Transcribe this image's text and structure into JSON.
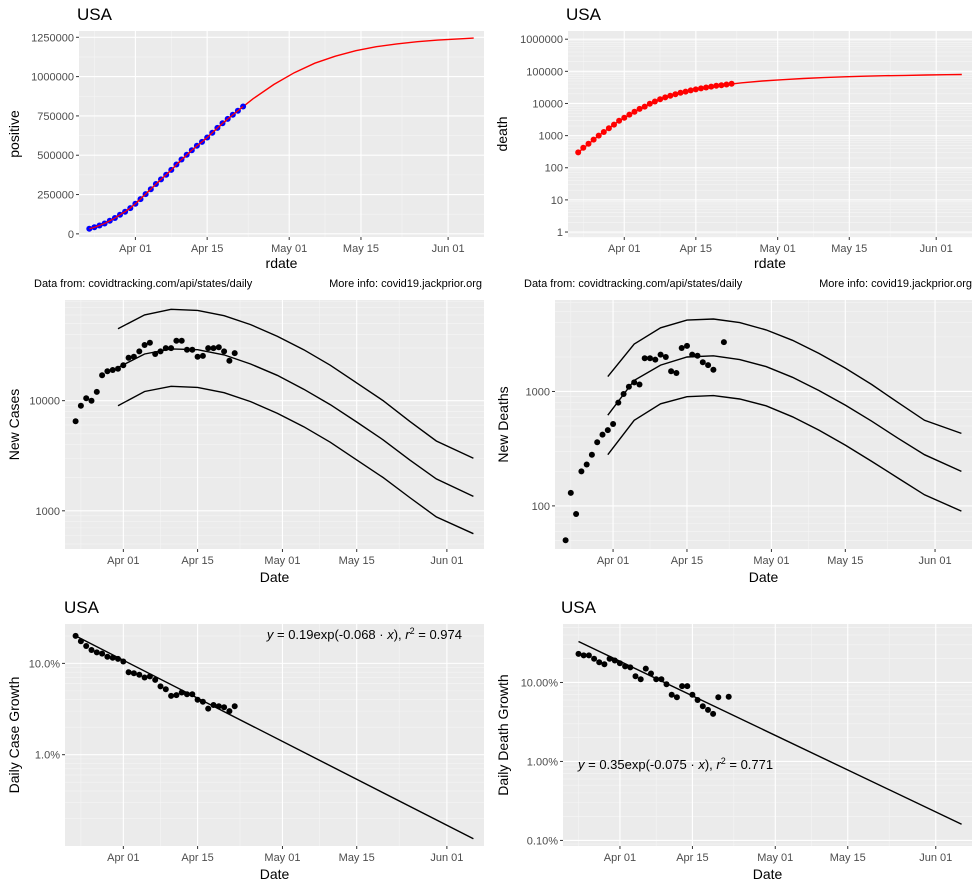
{
  "charts": [
    {
      "title": "USA",
      "xlabel": "rdate",
      "ylabel": "positive",
      "source_note": "",
      "info_note": "",
      "equation": null
    },
    {
      "title": "USA",
      "xlabel": "rdate",
      "ylabel": "death",
      "source_note": "",
      "info_note": "",
      "equation": null
    },
    {
      "title": "",
      "xlabel": "Date",
      "ylabel": "New Cases",
      "source_note": "Data from: covidtracking.com/api/states/daily",
      "info_note": "More info: covid19.jackprior.org",
      "equation": null
    },
    {
      "title": "",
      "xlabel": "Date",
      "ylabel": "New Deaths",
      "source_note": "Data from: covidtracking.com/api/states/daily",
      "info_note": "More info: covid19.jackprior.org",
      "equation": null
    },
    {
      "title": "USA",
      "xlabel": "Date",
      "ylabel": "Daily Case Growth",
      "source_note": "",
      "info_note": "",
      "equation": {
        "y": "y",
        "body": " = 0.19exp(-0.068 · ",
        "x": "x",
        "close": "),  ",
        "r": "r",
        "sup": "2",
        "val": " = 0.974"
      }
    },
    {
      "title": "USA",
      "xlabel": "Date",
      "ylabel": "Daily Death Growth",
      "source_note": "",
      "info_note": "",
      "equation": {
        "y": "y",
        "body": " = 0.35exp(-0.075 · ",
        "x": "x",
        "close": "),  ",
        "r": "r",
        "sup": "2",
        "val": " = 0.771"
      }
    }
  ],
  "chart_data": [
    {
      "type": "scatter",
      "x_ticks": [
        "2020-04-01",
        "2020-04-15",
        "2020-05-01",
        "2020-05-15",
        "2020-06-01"
      ],
      "x_tick_labels": [
        "Apr 01",
        "Apr 15",
        "May 01",
        "May 15",
        "Jun 01"
      ],
      "xlim": [
        "2020-03-21",
        "2020-06-08"
      ],
      "yscale": "linear",
      "ylim": [
        -20000,
        1290000
      ],
      "y_ticks": [
        0,
        250000,
        500000,
        750000,
        1000000,
        1250000
      ],
      "y_tick_labels": [
        "0",
        "250000",
        "500000",
        "750000",
        "1000000",
        "1250000"
      ],
      "grid": true,
      "point_color": "#0000ff",
      "fit_color": "#ff0000",
      "points": {
        "x": [
          "2020-03-23",
          "2020-03-24",
          "2020-03-25",
          "2020-03-26",
          "2020-03-27",
          "2020-03-28",
          "2020-03-29",
          "2020-03-30",
          "2020-03-31",
          "2020-04-01",
          "2020-04-02",
          "2020-04-03",
          "2020-04-04",
          "2020-04-05",
          "2020-04-06",
          "2020-04-07",
          "2020-04-08",
          "2020-04-09",
          "2020-04-10",
          "2020-04-11",
          "2020-04-12",
          "2020-04-13",
          "2020-04-14",
          "2020-04-15",
          "2020-04-16",
          "2020-04-17",
          "2020-04-18",
          "2020-04-19",
          "2020-04-20",
          "2020-04-21",
          "2020-04-22"
        ],
        "y": [
          32000,
          42000,
          53000,
          66000,
          83000,
          101000,
          122000,
          141000,
          164000,
          191000,
          221000,
          253000,
          284000,
          317000,
          346000,
          376000,
          407000,
          441000,
          473000,
          503000,
          532000,
          560000,
          585000,
          613000,
          643000,
          674000,
          703000,
          731000,
          757000,
          783000,
          810000
        ]
      },
      "fit": {
        "x": [
          "2020-03-23",
          "2020-03-27",
          "2020-03-31",
          "2020-04-04",
          "2020-04-08",
          "2020-04-12",
          "2020-04-16",
          "2020-04-20",
          "2020-04-24",
          "2020-04-28",
          "2020-05-02",
          "2020-05-06",
          "2020-05-10",
          "2020-05-14",
          "2020-05-18",
          "2020-05-22",
          "2020-05-26",
          "2020-05-30",
          "2020-06-03",
          "2020-06-06"
        ],
        "y": [
          32000,
          84000,
          164000,
          284000,
          407000,
          530000,
          643000,
          757000,
          860000,
          950000,
          1025000,
          1085000,
          1130000,
          1165000,
          1190000,
          1208000,
          1222000,
          1232000,
          1240000,
          1245000
        ]
      }
    },
    {
      "type": "scatter",
      "x_ticks": [
        "2020-04-01",
        "2020-04-15",
        "2020-05-01",
        "2020-05-15",
        "2020-06-01"
      ],
      "x_tick_labels": [
        "Apr 01",
        "Apr 15",
        "May 01",
        "May 15",
        "Jun 01"
      ],
      "xlim": [
        "2020-03-21",
        "2020-06-08"
      ],
      "yscale": "log10",
      "ylim": [
        0.7,
        1800000
      ],
      "y_ticks": [
        1,
        10,
        100,
        1000,
        10000,
        100000,
        1000000
      ],
      "y_tick_labels": [
        "1",
        "10",
        "100",
        "1000",
        "10000",
        "100000",
        "1000000"
      ],
      "grid": true,
      "point_color": "#ff0000",
      "fit_color": "#ff0000",
      "points": {
        "x": [
          "2020-03-23",
          "2020-03-24",
          "2020-03-25",
          "2020-03-26",
          "2020-03-27",
          "2020-03-28",
          "2020-03-29",
          "2020-03-30",
          "2020-03-31",
          "2020-04-01",
          "2020-04-02",
          "2020-04-03",
          "2020-04-04",
          "2020-04-05",
          "2020-04-06",
          "2020-04-07",
          "2020-04-08",
          "2020-04-09",
          "2020-04-10",
          "2020-04-11",
          "2020-04-12",
          "2020-04-13",
          "2020-04-14",
          "2020-04-15",
          "2020-04-16",
          "2020-04-17",
          "2020-04-18",
          "2020-04-19",
          "2020-04-20",
          "2020-04-21",
          "2020-04-22"
        ],
        "y": [
          300,
          420,
          560,
          750,
          1000,
          1300,
          1700,
          2200,
          2900,
          3600,
          4500,
          5500,
          6800,
          8000,
          9800,
          11500,
          13500,
          15500,
          17500,
          19500,
          21500,
          23500,
          25500,
          27500,
          29500,
          31500,
          33500,
          35500,
          37000,
          39000,
          41000
        ]
      },
      "fit": {
        "x": [
          "2020-03-23",
          "2020-03-27",
          "2020-03-31",
          "2020-04-04",
          "2020-04-08",
          "2020-04-12",
          "2020-04-16",
          "2020-04-20",
          "2020-04-24",
          "2020-04-28",
          "2020-05-02",
          "2020-05-06",
          "2020-05-10",
          "2020-05-14",
          "2020-05-18",
          "2020-05-22",
          "2020-05-26",
          "2020-05-30",
          "2020-06-03",
          "2020-06-06"
        ],
        "y": [
          300,
          1000,
          2900,
          6800,
          13500,
          21500,
          29500,
          37000,
          44000,
          50000,
          55000,
          60000,
          64000,
          67500,
          70500,
          73000,
          75000,
          77000,
          78500,
          79500
        ]
      }
    },
    {
      "type": "scatter",
      "x_ticks": [
        "2020-04-01",
        "2020-04-15",
        "2020-05-01",
        "2020-05-15",
        "2020-06-01"
      ],
      "x_tick_labels": [
        "Apr 01",
        "Apr 15",
        "May 01",
        "May 15",
        "Jun 01"
      ],
      "xlim": [
        "2020-03-21",
        "2020-06-08"
      ],
      "yscale": "log10",
      "ylim": [
        450,
        82000
      ],
      "y_ticks": [
        1000,
        10000
      ],
      "y_tick_labels": [
        "1000",
        "10000"
      ],
      "grid": true,
      "point_color": "#000000",
      "points": {
        "x": [
          "2020-03-23",
          "2020-03-24",
          "2020-03-25",
          "2020-03-26",
          "2020-03-27",
          "2020-03-28",
          "2020-03-29",
          "2020-03-30",
          "2020-03-31",
          "2020-04-01",
          "2020-04-02",
          "2020-04-03",
          "2020-04-04",
          "2020-04-05",
          "2020-04-06",
          "2020-04-07",
          "2020-04-08",
          "2020-04-09",
          "2020-04-10",
          "2020-04-11",
          "2020-04-12",
          "2020-04-13",
          "2020-04-14",
          "2020-04-15",
          "2020-04-16",
          "2020-04-17",
          "2020-04-18",
          "2020-04-19",
          "2020-04-20",
          "2020-04-21",
          "2020-04-22"
        ],
        "y": [
          6500,
          9000,
          10500,
          10000,
          12000,
          17000,
          18500,
          19000,
          19500,
          21000,
          24500,
          25000,
          28000,
          32000,
          33500,
          26500,
          28000,
          30000,
          30000,
          35000,
          35000,
          29000,
          29000,
          25000,
          25500,
          30000,
          30000,
          30500,
          28000,
          23000,
          27000
        ]
      },
      "curves": [
        {
          "x": [
            "2020-03-31",
            "2020-04-05",
            "2020-04-10",
            "2020-04-15",
            "2020-04-20",
            "2020-04-25",
            "2020-04-30",
            "2020-05-05",
            "2020-05-10",
            "2020-05-15",
            "2020-05-20",
            "2020-05-25",
            "2020-05-30",
            "2020-06-06"
          ],
          "y": [
            45000,
            60000,
            67500,
            66000,
            59000,
            49000,
            38500,
            29000,
            21000,
            14500,
            10000,
            6500,
            4300,
            3000
          ]
        },
        {
          "x": [
            "2020-03-31",
            "2020-04-05",
            "2020-04-10",
            "2020-04-15",
            "2020-04-20",
            "2020-04-25",
            "2020-04-30",
            "2020-05-05",
            "2020-05-10",
            "2020-05-15",
            "2020-05-20",
            "2020-05-25",
            "2020-05-30",
            "2020-06-06"
          ],
          "y": [
            20000,
            26500,
            29500,
            29000,
            26000,
            21500,
            17000,
            12700,
            9200,
            6400,
            4400,
            2900,
            1950,
            1350
          ]
        },
        {
          "x": [
            "2020-03-31",
            "2020-04-05",
            "2020-04-10",
            "2020-04-15",
            "2020-04-20",
            "2020-04-25",
            "2020-04-30",
            "2020-05-05",
            "2020-05-10",
            "2020-05-15",
            "2020-05-20",
            "2020-05-25",
            "2020-05-30",
            "2020-06-06"
          ],
          "y": [
            9000,
            12100,
            13500,
            13200,
            11800,
            9800,
            7700,
            5800,
            4200,
            2900,
            2000,
            1320,
            880,
            620
          ]
        }
      ]
    },
    {
      "type": "scatter",
      "x_ticks": [
        "2020-04-01",
        "2020-04-15",
        "2020-05-01",
        "2020-05-15",
        "2020-06-01"
      ],
      "x_tick_labels": [
        "Apr 01",
        "Apr 15",
        "May 01",
        "May 15",
        "Jun 01"
      ],
      "xlim": [
        "2020-03-21",
        "2020-06-08"
      ],
      "yscale": "log10",
      "ylim": [
        42,
        6300
      ],
      "y_ticks": [
        100,
        1000
      ],
      "y_tick_labels": [
        "100",
        "1000"
      ],
      "grid": true,
      "point_color": "#000000",
      "points": {
        "x": [
          "2020-03-23",
          "2020-03-24",
          "2020-03-25",
          "2020-03-26",
          "2020-03-27",
          "2020-03-28",
          "2020-03-29",
          "2020-03-30",
          "2020-03-31",
          "2020-04-01",
          "2020-04-02",
          "2020-04-03",
          "2020-04-04",
          "2020-04-05",
          "2020-04-06",
          "2020-04-07",
          "2020-04-08",
          "2020-04-09",
          "2020-04-10",
          "2020-04-11",
          "2020-04-12",
          "2020-04-13",
          "2020-04-14",
          "2020-04-15",
          "2020-04-16",
          "2020-04-17",
          "2020-04-18",
          "2020-04-19",
          "2020-04-20",
          "2020-04-22"
        ],
        "y": [
          50,
          130,
          85,
          200,
          230,
          280,
          360,
          420,
          460,
          520,
          800,
          950,
          1100,
          1200,
          1150,
          1950,
          1950,
          1900,
          2100,
          2000,
          1500,
          1450,
          2400,
          2500,
          2100,
          2050,
          1800,
          1700,
          1550,
          2700
        ]
      },
      "curves": [
        {
          "x": [
            "2020-03-31",
            "2020-04-05",
            "2020-04-10",
            "2020-04-15",
            "2020-04-20",
            "2020-04-25",
            "2020-04-30",
            "2020-05-05",
            "2020-05-10",
            "2020-05-15",
            "2020-05-20",
            "2020-05-25",
            "2020-05-30",
            "2020-06-06"
          ],
          "y": [
            1350,
            2600,
            3600,
            4200,
            4300,
            4000,
            3450,
            2800,
            2150,
            1600,
            1150,
            800,
            560,
            430
          ]
        },
        {
          "x": [
            "2020-03-31",
            "2020-04-05",
            "2020-04-10",
            "2020-04-15",
            "2020-04-20",
            "2020-04-25",
            "2020-04-30",
            "2020-05-05",
            "2020-05-10",
            "2020-05-15",
            "2020-05-20",
            "2020-05-25",
            "2020-05-30",
            "2020-06-06"
          ],
          "y": [
            620,
            1250,
            1700,
            2000,
            2050,
            1900,
            1650,
            1330,
            1020,
            760,
            550,
            390,
            280,
            200
          ]
        },
        {
          "x": [
            "2020-03-31",
            "2020-04-05",
            "2020-04-10",
            "2020-04-15",
            "2020-04-20",
            "2020-04-25",
            "2020-04-30",
            "2020-05-05",
            "2020-05-10",
            "2020-05-15",
            "2020-05-20",
            "2020-05-25",
            "2020-05-30",
            "2020-06-06"
          ],
          "y": [
            280,
            560,
            780,
            900,
            920,
            860,
            750,
            600,
            460,
            340,
            245,
            175,
            125,
            90
          ]
        }
      ]
    },
    {
      "type": "scatter",
      "x_ticks": [
        "2020-04-01",
        "2020-04-15",
        "2020-05-01",
        "2020-05-15",
        "2020-06-01"
      ],
      "x_tick_labels": [
        "Apr 01",
        "Apr 15",
        "May 01",
        "May 15",
        "Jun 01"
      ],
      "xlim": [
        "2020-03-21",
        "2020-06-08"
      ],
      "yscale": "log10",
      "ylim": [
        0.1,
        27
      ],
      "y_ticks": [
        1,
        10
      ],
      "y_tick_labels": [
        "1.0%",
        "10.0%"
      ],
      "grid": true,
      "point_color": "#000000",
      "points": {
        "x": [
          "2020-03-23",
          "2020-03-24",
          "2020-03-25",
          "2020-03-26",
          "2020-03-27",
          "2020-03-28",
          "2020-03-29",
          "2020-03-30",
          "2020-03-31",
          "2020-04-01",
          "2020-04-02",
          "2020-04-03",
          "2020-04-04",
          "2020-04-05",
          "2020-04-06",
          "2020-04-07",
          "2020-04-08",
          "2020-04-09",
          "2020-04-10",
          "2020-04-11",
          "2020-04-12",
          "2020-04-13",
          "2020-04-14",
          "2020-04-15",
          "2020-04-16",
          "2020-04-17",
          "2020-04-18",
          "2020-04-19",
          "2020-04-20",
          "2020-04-21",
          "2020-04-22"
        ],
        "y": [
          20,
          17.5,
          15.5,
          14,
          13.2,
          12.8,
          11.8,
          11.5,
          11.2,
          10.5,
          8,
          7.8,
          7.5,
          7,
          7.2,
          6.6,
          5.6,
          5.2,
          4.4,
          4.5,
          4.8,
          4.6,
          4.6,
          4.0,
          3.8,
          3.2,
          3.5,
          3.4,
          3.3,
          3.0,
          3.4
        ]
      },
      "fit": {
        "x": [
          "2020-03-23",
          "2020-06-06"
        ],
        "y": [
          20,
          0.12
        ]
      }
    },
    {
      "type": "scatter",
      "x_ticks": [
        "2020-04-01",
        "2020-04-15",
        "2020-05-01",
        "2020-05-15",
        "2020-06-01"
      ],
      "x_tick_labels": [
        "Apr 01",
        "Apr 15",
        "May 01",
        "May 15",
        "Jun 01"
      ],
      "xlim": [
        "2020-03-21",
        "2020-06-08"
      ],
      "yscale": "log10",
      "ylim": [
        0.085,
        55
      ],
      "y_ticks": [
        0.1,
        1,
        10
      ],
      "y_tick_labels": [
        "0.10%",
        "1.00%",
        "10.00%"
      ],
      "grid": true,
      "point_color": "#000000",
      "points": {
        "x": [
          "2020-03-24",
          "2020-03-25",
          "2020-03-26",
          "2020-03-27",
          "2020-03-28",
          "2020-03-29",
          "2020-03-30",
          "2020-03-31",
          "2020-04-01",
          "2020-04-02",
          "2020-04-03",
          "2020-04-04",
          "2020-04-05",
          "2020-04-06",
          "2020-04-07",
          "2020-04-08",
          "2020-04-09",
          "2020-04-10",
          "2020-04-11",
          "2020-04-12",
          "2020-04-13",
          "2020-04-14",
          "2020-04-15",
          "2020-04-16",
          "2020-04-17",
          "2020-04-18",
          "2020-04-19",
          "2020-04-20",
          "2020-04-22"
        ],
        "y": [
          23,
          22,
          22,
          20,
          18,
          17,
          20,
          19,
          17.5,
          16,
          15.5,
          12,
          11,
          15,
          13,
          11,
          11,
          9.5,
          7,
          6.5,
          9,
          9,
          7,
          6,
          5,
          4.5,
          4,
          6.5,
          6.6
        ]
      },
      "fit": {
        "x": [
          "2020-03-24",
          "2020-06-06"
        ],
        "y": [
          33,
          0.16
        ]
      }
    }
  ]
}
